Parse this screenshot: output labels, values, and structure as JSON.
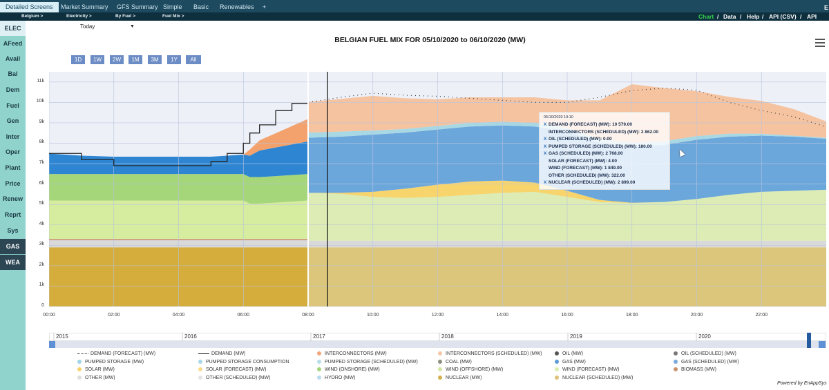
{
  "tabs": [
    {
      "label": "Detailed Screens",
      "active": true
    },
    {
      "label": "Market Summary"
    },
    {
      "label": "GFS Summary"
    },
    {
      "label": "Simple"
    },
    {
      "label": "Basic"
    },
    {
      "label": "Renewables"
    },
    {
      "label": "+"
    }
  ],
  "breadcrumbs": [
    "Belgium >",
    "Electricity >",
    "By Fuel >",
    "Fuel Mix >"
  ],
  "right_links": {
    "chart": "Chart",
    "sep": "/",
    "data": "Data",
    "help": "Help",
    "api_csv": "API (CSV)",
    "api_xml": "API (XML",
    "corner": "E"
  },
  "sidebar": [
    "ELEC",
    "AFeed",
    "Avail",
    "Bal",
    "Dem",
    "Fuel",
    "Gen",
    "Inter",
    "Oper",
    "Plant",
    "Price",
    "Renew",
    "Reprt",
    "Sys",
    "GAS",
    "WEA"
  ],
  "date_selector": {
    "value": "Today",
    "arrow": "▼"
  },
  "range_buttons": [
    "1D",
    "1W",
    "2W",
    "1M",
    "3M",
    "1Y",
    "All"
  ],
  "chart_data": {
    "type": "area",
    "title": "BELGIAN FUEL MIX FOR 05/10/2020 to 06/10/2020 (MW)",
    "x_ticks": [
      "00:00",
      "02:00",
      "04:00",
      "06:00",
      "08:00",
      "10:00",
      "12:00",
      "14:00",
      "16:00",
      "18:00",
      "20:00",
      "22:00"
    ],
    "y_ticks": [
      "0",
      "1k",
      "2k",
      "3k",
      "4k",
      "5k",
      "6k",
      "7k",
      "8k",
      "9k",
      "10k",
      "11k"
    ],
    "ylim": [
      0,
      11500
    ],
    "xlim_hours": [
      0,
      24
    ],
    "actual_until_hour": 8,
    "cursor_hour": 8.6,
    "actual": {
      "hours": [
        0,
        1,
        2,
        3,
        4,
        5,
        5.5,
        6,
        6.2,
        6.5,
        7,
        7.5,
        8
      ],
      "nuclear": [
        2900,
        2900,
        2900,
        2900,
        2900,
        2900,
        2900,
        2900,
        2900,
        2900,
        2900,
        2900,
        2900
      ],
      "other": [
        350,
        350,
        350,
        350,
        350,
        350,
        350,
        350,
        350,
        350,
        350,
        350,
        350
      ],
      "biomass": [
        40,
        40,
        40,
        40,
        40,
        40,
        40,
        40,
        40,
        40,
        40,
        40,
        40
      ],
      "wind": [
        1900,
        1900,
        1900,
        1900,
        1900,
        1900,
        1900,
        1900,
        1750,
        1750,
        1800,
        1850,
        1900
      ],
      "solar": [
        0,
        0,
        0,
        0,
        0,
        0,
        0,
        0,
        0,
        0,
        0,
        0,
        0
      ],
      "hydro": [
        1300,
        1300,
        1300,
        1300,
        1300,
        1300,
        1300,
        1300,
        1300,
        1300,
        1300,
        1300,
        1300
      ],
      "gas": [
        1000,
        900,
        850,
        850,
        850,
        850,
        900,
        950,
        1050,
        1300,
        1400,
        1500,
        1600
      ],
      "interconnectors": [
        0,
        0,
        0,
        0,
        0,
        0,
        0,
        0,
        300,
        500,
        700,
        900,
        1100
      ],
      "demand": [
        7500,
        7200,
        6900,
        6900,
        6900,
        7100,
        7500,
        8000,
        8500,
        8900,
        9600,
        9950,
        10100
      ]
    },
    "forecast": {
      "hours": [
        8,
        9,
        10,
        11,
        12,
        13,
        14,
        15,
        16,
        17,
        18,
        19,
        20,
        21,
        22,
        23,
        24
      ],
      "nuclear": [
        2900,
        2900,
        2900,
        2900,
        2900,
        2900,
        2900,
        2900,
        2900,
        2900,
        2900,
        2900,
        2900,
        2900,
        2900,
        2900,
        2900
      ],
      "other": [
        320,
        320,
        320,
        320,
        320,
        320,
        320,
        320,
        320,
        320,
        320,
        320,
        320,
        320,
        320,
        320,
        320
      ],
      "wind": [
        2350,
        2300,
        2150,
        2100,
        2150,
        2250,
        2350,
        2400,
        2150,
        1900,
        1850,
        1900,
        2050,
        2250,
        2400,
        2450,
        2500
      ],
      "solar": [
        0,
        50,
        250,
        450,
        600,
        650,
        600,
        450,
        300,
        100,
        10,
        0,
        0,
        0,
        0,
        0,
        0
      ],
      "gas": [
        2700,
        2750,
        2800,
        2750,
        2700,
        2700,
        2700,
        2750,
        2900,
        2800,
        2768,
        2800,
        2900,
        2850,
        2750,
        2650,
        2500
      ],
      "pumped_storage": [
        250,
        250,
        200,
        180,
        180,
        180,
        180,
        180,
        180,
        180,
        180,
        180,
        180,
        150,
        100,
        50,
        50
      ],
      "interconnectors": [
        1500,
        1600,
        1700,
        1500,
        1300,
        1250,
        1200,
        1250,
        1350,
        1900,
        2862,
        2600,
        2200,
        1800,
        1600,
        1300,
        800
      ],
      "demand": [
        10000,
        10250,
        10450,
        10350,
        10300,
        10200,
        10100,
        10000,
        10000,
        10250,
        10579,
        10700,
        10600,
        10000,
        9600,
        9300,
        8800
      ]
    },
    "tooltip": {
      "time": "05/10/2020 19:10",
      "rows": [
        {
          "mark": "X",
          "text": "DEMAND (FORECAST) (MW): 10 579.00"
        },
        {
          "mark": "",
          "text": "INTERCONNECTORS (SCHEDULED) (MW): 2 862.00"
        },
        {
          "mark": "X",
          "text": "OIL (SCHEDULED) (MW): 0.00"
        },
        {
          "mark": "X",
          "text": "PUMPED STORAGE (SCHEDULED) (MW): 180.00"
        },
        {
          "mark": "X",
          "text": "GAS (SCHEDULED) (MW): 2 768.00"
        },
        {
          "mark": "",
          "text": "SOLAR (FORECAST) (MW): 4.00"
        },
        {
          "mark": "",
          "text": "WIND (FORECAST) (MW): 1 849.00"
        },
        {
          "mark": "",
          "text": "OTHER (SCHEDULED) (MW): 322.00"
        },
        {
          "mark": "X",
          "text": "NUCLEAR (SCHEDULED) (MW): 2 899.00"
        }
      ]
    },
    "navigator_years": [
      "2015",
      "2016",
      "2017",
      "2018",
      "2019",
      "2020"
    ],
    "legend": [
      {
        "label": "DEMAND (FORECAST) (MW)",
        "kind": "dots",
        "color": "#333333"
      },
      {
        "label": "DEMAND (MW)",
        "kind": "line",
        "color": "#222222"
      },
      {
        "label": "INTERCONNECTORS (MW)",
        "kind": "dot",
        "color": "#f4a57a"
      },
      {
        "label": "INTERCONNECTORS (SCHEDULED) (MW)",
        "kind": "dot",
        "color": "#f5c7a6"
      },
      {
        "label": "OIL (MW)",
        "kind": "dot",
        "color": "#555555"
      },
      {
        "label": "OIL (SCHEDULED) (MW)",
        "kind": "dot",
        "color": "#777777"
      },
      {
        "label": "PUMPED STORAGE (MW)",
        "kind": "dot",
        "color": "#9fd4e6"
      },
      {
        "label": "PUMPED STORAGE CONSUMPTION",
        "kind": "dot",
        "color": "#a8d8e8"
      },
      {
        "label": "PUMPED STORAGE (SCHEDULED) (MW)",
        "kind": "dot",
        "color": "#b6dde9"
      },
      {
        "label": "COAL (MW)",
        "kind": "dot",
        "color": "#8e8e80"
      },
      {
        "label": "GAS (MW)",
        "kind": "dot",
        "color": "#5b9bd5"
      },
      {
        "label": "GAS (SCHEDULED) (MW)",
        "kind": "dot",
        "color": "#79abd9"
      },
      {
        "label": "SOLAR (MW)",
        "kind": "dot",
        "color": "#f7d36a"
      },
      {
        "label": "SOLAR (FORECAST) (MW)",
        "kind": "dot",
        "color": "#f8dc8a"
      },
      {
        "label": "WIND (ONSHORE) (MW)",
        "kind": "dot",
        "color": "#a3d67a"
      },
      {
        "label": "WIND (OFFSHORE) (MW)",
        "kind": "dot",
        "color": "#d2e8a3"
      },
      {
        "label": "WIND (FORECAST) (MW)",
        "kind": "dot",
        "color": "#dbedb0"
      },
      {
        "label": "BIOMASS (MW)",
        "kind": "dot",
        "color": "#c9906a"
      },
      {
        "label": "OTHER (MW)",
        "kind": "dot",
        "color": "#dddddd"
      },
      {
        "label": "OTHER (SCHEDULED) (MW)",
        "kind": "dot",
        "color": "#e4e4e4"
      },
      {
        "label": "HYDRO (MW)",
        "kind": "dot",
        "color": "#b9dcf0"
      },
      {
        "label": "NUCLEAR (MW)",
        "kind": "dot",
        "color": "#d4b04a"
      },
      {
        "label": "NUCLEAR (SCHEDULED) (MW)",
        "kind": "dot",
        "color": "#dcc27a"
      }
    ]
  },
  "colors": {
    "nuclear_actual": "#d4ad3c",
    "nuclear_forecast": "#dcc67c",
    "other": "#d9d9d9",
    "biomass": "#c0504d",
    "wind_actual": "#d6ec9e",
    "wind_forecast": "#dcecb4",
    "hydro": "#a6d67a",
    "gas_actual": "#2e86d2",
    "gas_forecast": "#6ca7dc",
    "solar": "#f7d46c",
    "pumped": "#a8d8e4",
    "interconnectors_actual": "#f3a26d",
    "interconnectors_forecast": "#f5c3a0"
  },
  "footer": {
    "powered": "Powered by EnAppSys"
  }
}
